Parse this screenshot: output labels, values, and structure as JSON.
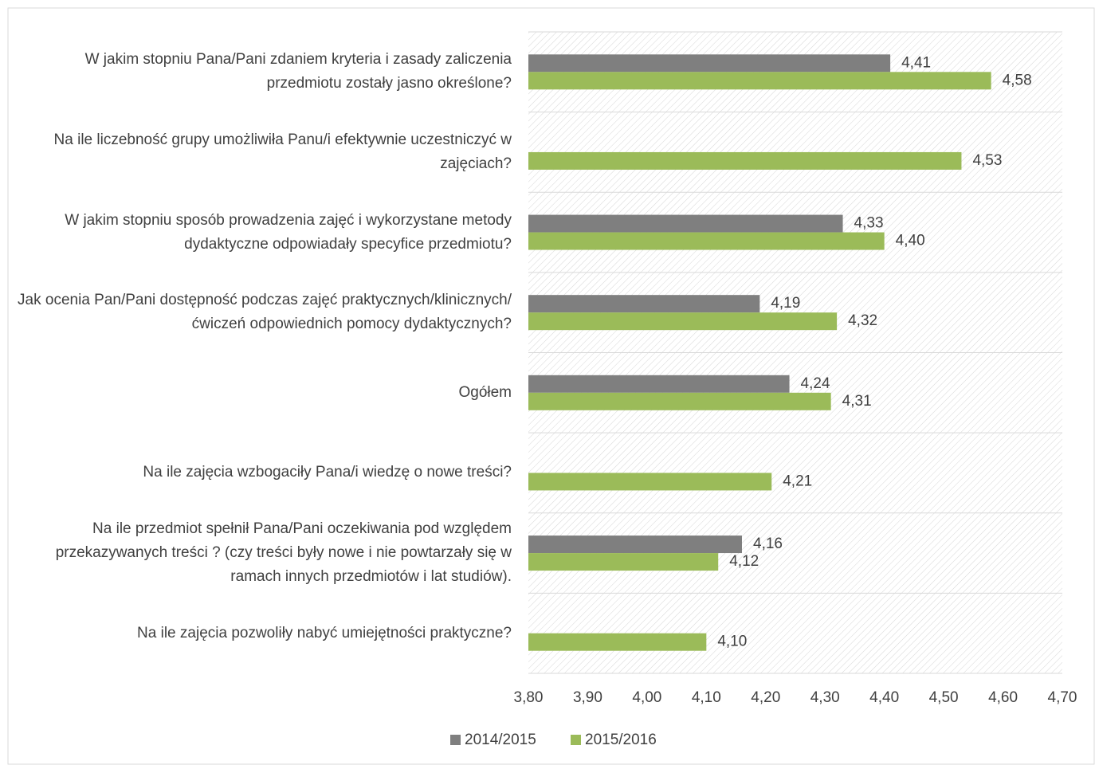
{
  "chart_data": {
    "type": "barh",
    "categories": [
      "W jakim stopniu Pana/Pani zdaniem kryteria i zasady zaliczenia przedmiotu zostały jasno określone?",
      "Na ile liczebność grupy umożliwiła Panu/i efektywnie uczestniczyć w zajęciach?",
      "W jakim stopniu sposób prowadzenia zajęć i wykorzystane metody dydaktyczne odpowiadały specyfice przedmiotu?",
      "Jak ocenia Pan/Pani dostępność podczas zajęć praktycznych/klinicznych/ćwiczeń odpowiednich pomocy dydaktycznych?",
      "Ogółem",
      "Na ile zajęcia wzbogaciły Pana/i wiedzę o nowe treści?",
      "Na ile przedmiot spełnił Pana/Pani oczekiwania pod względem przekazywanych treści ? (czy treści były nowe i nie powtarzały się w ramach innych przedmiotów i lat studiów).",
      "Na ile zajęcia pozwoliły nabyć umiejętności praktyczne?"
    ],
    "series": [
      {
        "name": "2014/2015",
        "color": "#7f7f7f",
        "values": [
          4.41,
          null,
          4.33,
          4.19,
          4.24,
          null,
          4.16,
          null
        ],
        "value_labels": [
          "4,41",
          null,
          "4,33",
          "4,19",
          "4,24",
          null,
          "4,16",
          null
        ]
      },
      {
        "name": "2015/2016",
        "color": "#9bbb59",
        "values": [
          4.58,
          4.53,
          4.4,
          4.32,
          4.31,
          4.21,
          4.12,
          4.1
        ],
        "value_labels": [
          "4,58",
          "4,53",
          "4,40",
          "4,32",
          "4,31",
          "4,21",
          "4,12",
          "4,10"
        ]
      }
    ],
    "xlim": [
      3.8,
      4.7
    ],
    "xticks": [
      {
        "value": 3.8,
        "label": "3,80"
      },
      {
        "value": 3.9,
        "label": "3,90"
      },
      {
        "value": 4.0,
        "label": "4,00"
      },
      {
        "value": 4.1,
        "label": "4,10"
      },
      {
        "value": 4.2,
        "label": "4,20"
      },
      {
        "value": 4.3,
        "label": "4,30"
      },
      {
        "value": 4.4,
        "label": "4,40"
      },
      {
        "value": 4.5,
        "label": "4,50"
      },
      {
        "value": 4.6,
        "label": "4,60"
      },
      {
        "value": 4.7,
        "label": "4,70"
      }
    ],
    "legend": "bottom"
  }
}
